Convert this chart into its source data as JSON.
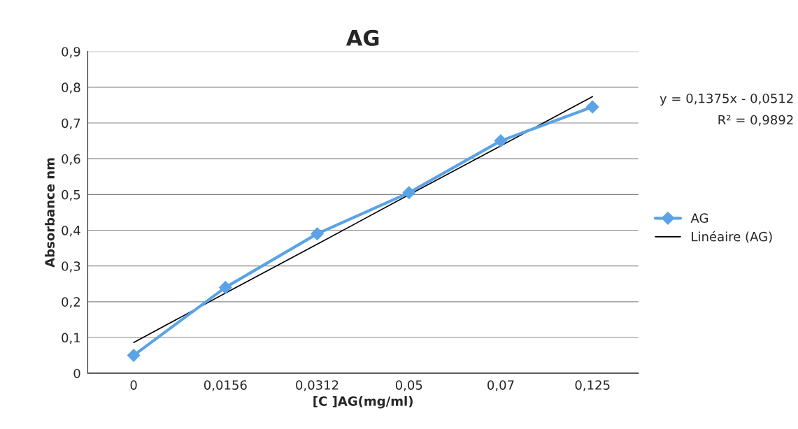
{
  "chart_data": {
    "type": "line",
    "title": "AG",
    "xlabel": "[C ]AG(mg/ml)",
    "ylabel": "Absorbance nm",
    "categories": [
      "0",
      "0,0156",
      "0,0312",
      "0,05",
      "0,07",
      "0,125"
    ],
    "series": [
      {
        "name": "AG",
        "color": "#5ba3e6",
        "values": [
          0.05,
          0.24,
          0.39,
          0.505,
          0.65,
          0.745
        ],
        "marker": "diamond",
        "line_style": "solid"
      },
      {
        "name": "Linéaire (AG)",
        "color": "#000000",
        "values": [
          0.086,
          0.224,
          0.361,
          0.499,
          0.636,
          0.774
        ],
        "marker": "none",
        "line_style": "solid"
      }
    ],
    "ylim": [
      0,
      0.9
    ],
    "yticks": [
      {
        "value": 0,
        "label": "0"
      },
      {
        "value": 0.1,
        "label": "0,1"
      },
      {
        "value": 0.2,
        "label": "0,2"
      },
      {
        "value": 0.3,
        "label": "0,3"
      },
      {
        "value": 0.4,
        "label": "0,4"
      },
      {
        "value": 0.5,
        "label": "0,5"
      },
      {
        "value": 0.6,
        "label": "0,6"
      },
      {
        "value": 0.7,
        "label": "0,7"
      },
      {
        "value": 0.8,
        "label": "0,8"
      },
      {
        "value": 0.9,
        "label": "0,9"
      }
    ],
    "annotations": [
      "y = 0,1375x - 0,0512",
      "R² = 0,9892"
    ],
    "grid": "y",
    "legend": "right"
  }
}
